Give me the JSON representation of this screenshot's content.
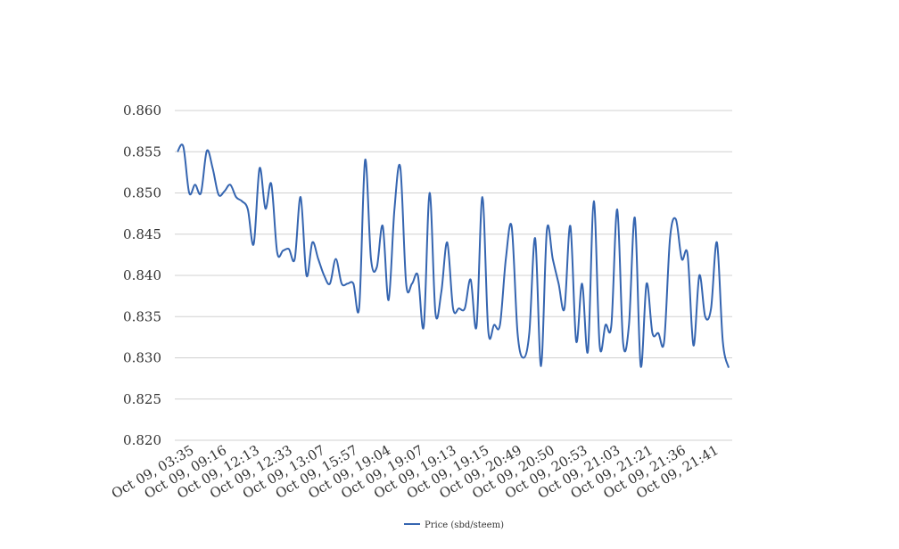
{
  "chart_data": {
    "type": "line",
    "title": "",
    "xlabel": "",
    "ylabel": "",
    "ylim": [
      0.82,
      0.86
    ],
    "yticks": [
      "0.820",
      "0.825",
      "0.830",
      "0.835",
      "0.840",
      "0.845",
      "0.850",
      "0.855",
      "0.860"
    ],
    "xticks": [
      "Oct 09, 03:35",
      "Oct 09, 09:16",
      "Oct 09, 12:13",
      "Oct 09, 12:33",
      "Oct 09, 13:07",
      "Oct 09, 15:57",
      "Oct 09, 19:04",
      "Oct 09, 19:07",
      "Oct 09, 19:13",
      "Oct 09, 19:15",
      "Oct 09, 20:49",
      "Oct 09, 20:50",
      "Oct 09, 20:53",
      "Oct 09, 21:03",
      "Oct 09, 21:21",
      "Oct 09, 21:36",
      "Oct 09, 21:41"
    ],
    "grid": true,
    "legend_position": "bottom",
    "color": "#3565b0",
    "series": [
      {
        "name": "Price (sbd/steem)",
        "values": [
          0.855,
          0.8556,
          0.85,
          0.851,
          0.85,
          0.8551,
          0.853,
          0.8498,
          0.8502,
          0.851,
          0.8495,
          0.849,
          0.848,
          0.8438,
          0.853,
          0.8481,
          0.8511,
          0.8428,
          0.843,
          0.8432,
          0.842,
          0.8495,
          0.84,
          0.844,
          0.842,
          0.84,
          0.839,
          0.842,
          0.839,
          0.839,
          0.839,
          0.8362,
          0.854,
          0.842,
          0.841,
          0.846,
          0.837,
          0.848,
          0.8531,
          0.839,
          0.839,
          0.84,
          0.8338,
          0.85,
          0.8354,
          0.838,
          0.844,
          0.836,
          0.836,
          0.836,
          0.8395,
          0.8338,
          0.8495,
          0.8333,
          0.834,
          0.834,
          0.842,
          0.8459,
          0.833,
          0.83,
          0.833,
          0.8445,
          0.829,
          0.8455,
          0.842,
          0.839,
          0.836,
          0.846,
          0.832,
          0.839,
          0.8308,
          0.849,
          0.8315,
          0.834,
          0.834,
          0.848,
          0.8318,
          0.834,
          0.847,
          0.829,
          0.839,
          0.833,
          0.833,
          0.832,
          0.8445,
          0.8468,
          0.842,
          0.8425,
          0.8315,
          0.84,
          0.835,
          0.836,
          0.844,
          0.832,
          0.8288
        ]
      }
    ]
  }
}
